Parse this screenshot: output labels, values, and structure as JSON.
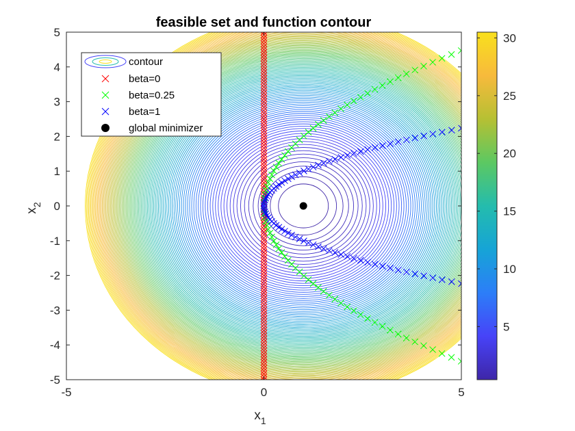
{
  "chart_data": {
    "type": "scatter",
    "title": "feasible set and function contour",
    "xlabel": "x",
    "xlabel_sub": "1",
    "ylabel": "x",
    "ylabel_sub": "2",
    "xlim": [
      -5,
      5
    ],
    "ylim": [
      -5,
      5
    ],
    "xticks": [
      -5,
      0,
      5
    ],
    "yticks": [
      -5,
      -4,
      -3,
      -2,
      -1,
      0,
      1,
      2,
      3,
      4,
      5
    ],
    "grid": false,
    "legend_position": "top-left",
    "contour": {
      "function": "(x1 - 1)^2 + x2^2",
      "center": [
        1,
        0
      ],
      "level_min": 0.4,
      "level_max": 30.5,
      "level_count": 100,
      "colormap": [
        "#3e26a8",
        "#4743f8",
        "#2c7ef8",
        "#16a4d6",
        "#24bcad",
        "#5cc862",
        "#b6c033",
        "#f7ba3c",
        "#f9e01d"
      ]
    },
    "colorbar": {
      "ticks": [
        5,
        10,
        15,
        20,
        25,
        30
      ],
      "range": [
        0.4,
        30.5
      ]
    },
    "series": [
      {
        "name": "beta=0",
        "color": "#ff0000",
        "marker": "x",
        "curve": "x1 = 0",
        "t_range": [
          -5,
          5
        ],
        "n_points": 121
      },
      {
        "name": "beta=0.25",
        "color": "#00ff00",
        "marker": "x",
        "curve": "x1 = 0.25 * x2^2",
        "t_range": [
          -4.47,
          4.47
        ],
        "n_points": 81
      },
      {
        "name": "beta=1",
        "color": "#0000ff",
        "marker": "x",
        "curve": "x1 = x2^2",
        "t_range": [
          -2.236,
          2.236
        ],
        "n_points": 81
      }
    ],
    "minimizer": {
      "name": "global minimizer",
      "x": 1,
      "y": 0,
      "color": "#000000",
      "marker": "filled-circle"
    },
    "legend_entries": [
      "contour",
      "beta=0",
      "beta=0.25",
      "beta=1",
      "global minimizer"
    ]
  }
}
